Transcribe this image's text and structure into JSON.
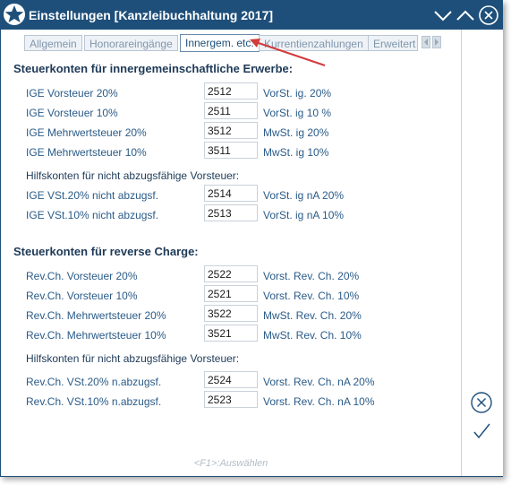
{
  "window": {
    "title": "Einstellungen [Kanzleibuchhaltung 2017]",
    "colors": {
      "titlebar": "#1e4f7a",
      "label": "#2a5b88",
      "annotation_arrow": "#d23b3b"
    }
  },
  "titlebar_buttons": [
    "chevron-down-icon",
    "chevron-up-icon",
    "close-circle-icon"
  ],
  "tabs": [
    {
      "label": "Allgemein",
      "active": false
    },
    {
      "label": "Honorareingänge",
      "active": false
    },
    {
      "label": "Innergem. etc.",
      "active": true
    },
    {
      "label": "Kurrentienzahlungen",
      "active": false
    },
    {
      "label": "Erweitert",
      "active": false
    }
  ],
  "section1": {
    "heading": "Steuerkonten für innergemeinschaftliche Erwerbe:",
    "rows": [
      {
        "label": "IGE Vorsteuer 20%",
        "value": "2512",
        "desc": "VorSt. ig. 20%"
      },
      {
        "label": "IGE Vorsteuer 10%",
        "value": "2511",
        "desc": "VorSt. ig 10 %"
      },
      {
        "label": "IGE Mehrwertsteuer 20%",
        "value": "3512",
        "desc": "MwSt. ig 20%"
      },
      {
        "label": "IGE Mehrwertsteuer 10%",
        "value": "3511",
        "desc": "MwSt. ig 10%"
      }
    ],
    "subheading": "Hilfskonten für nicht abzugsfähige Vorsteuer:",
    "subrows": [
      {
        "label": "IGE VSt.20% nicht abzugsf.",
        "value": "2514",
        "desc": "VorSt. ig nA 20%"
      },
      {
        "label": "IGE VSt.10% nicht abzugsf.",
        "value": "2513",
        "desc": "VorSt. ig nA 10%"
      }
    ]
  },
  "section2": {
    "heading": "Steuerkonten für reverse Charge:",
    "rows": [
      {
        "label": "Rev.Ch. Vorsteuer 20%",
        "value": "2522",
        "desc": "Vorst. Rev. Ch. 20%"
      },
      {
        "label": "Rev.Ch. Vorsteuer 10%",
        "value": "2521",
        "desc": "Vorst. Rev. Ch. 10%"
      },
      {
        "label": "Rev.Ch. Mehrwertsteuer 20%",
        "value": "3522",
        "desc": "MwSt. Rev. Ch. 20%"
      },
      {
        "label": "Rev.Ch. Mehrwertsteuer 10%",
        "value": "3521",
        "desc": "MwSt. Rev. Ch. 10%"
      }
    ],
    "subheading": "Hilfskonten für nicht abzugsfähige Vorsteuer:",
    "subrows": [
      {
        "label": "Rev.Ch. VSt.20% n.abzugsf.",
        "value": "2524",
        "desc": "Vorst. Rev. Ch. nA 20%"
      },
      {
        "label": "Rev.Ch. VSt.10% n.abzugsf.",
        "value": "2523",
        "desc": "Vorst. Rev. Ch. nA 10%"
      }
    ]
  },
  "footer": {
    "hint": "<F1>:Auswählen"
  },
  "side_actions": [
    "cancel-circle-icon",
    "confirm-check-icon"
  ]
}
